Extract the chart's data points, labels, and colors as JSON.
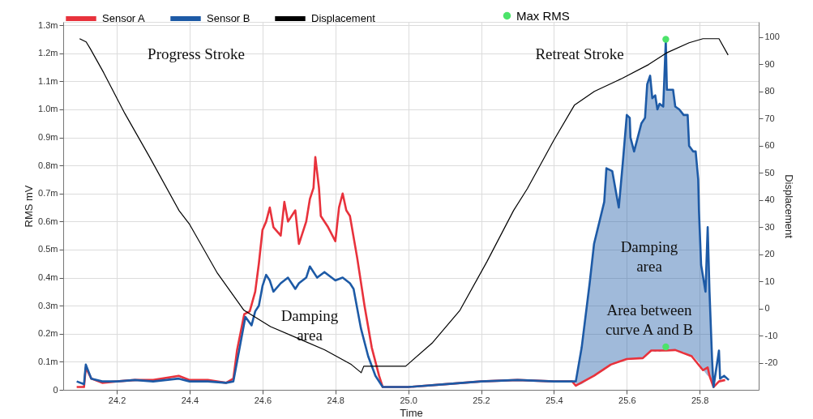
{
  "chart_data": {
    "type": "line",
    "xlabel": "Time",
    "ylabel": "RMS mV",
    "y2label": "Displacement",
    "xlim": [
      24.053,
      25.962
    ],
    "xticks": [
      24.2,
      24.4,
      24.6,
      24.8,
      {
        "value": 25.0,
        "label": "25.0"
      },
      25.2,
      25.4,
      25.6,
      25.8
    ],
    "ylim": [
      0,
      1.312
    ],
    "yticks": [
      0,
      {
        "value": 0.1,
        "label": "0.1m"
      },
      {
        "value": 0.2,
        "label": "0.2m"
      },
      {
        "value": 0.3,
        "label": "0.3m"
      },
      {
        "value": 0.4,
        "label": "0.4m"
      },
      {
        "value": 0.5,
        "label": "0.5m"
      },
      {
        "value": 0.6,
        "label": "0.6m"
      },
      {
        "value": 0.7,
        "label": "0.7m"
      },
      {
        "value": 0.8,
        "label": "0.8m"
      },
      {
        "value": 0.9,
        "label": "0.9m"
      },
      {
        "value": 1.0,
        "label": "1.0m"
      },
      {
        "value": 1.1,
        "label": "1.1m"
      },
      {
        "value": 1.2,
        "label": "1.2m"
      },
      {
        "value": 1.3,
        "label": "1.3m"
      }
    ],
    "y2lim": [
      -29.9,
      105.6
    ],
    "y2ticks": [
      -20,
      -10,
      0,
      10,
      20,
      30,
      40,
      50,
      60,
      70,
      80,
      90,
      100
    ],
    "grid": true,
    "legend": "top",
    "annotations": [
      "Progress Stroke",
      "Retreat Stroke",
      "Damping\narea",
      "Damping\narea",
      "Area between\ncurve A and B"
    ],
    "series": [
      {
        "name": "Sensor A",
        "type": "line",
        "color": "#e8323c",
        "x": [
          24.09,
          24.11,
          24.115,
          24.13,
          24.16,
          24.2,
          24.25,
          24.3,
          24.37,
          24.4,
          24.45,
          24.5,
          24.52,
          24.53,
          24.55,
          24.565,
          24.58,
          24.59,
          24.6,
          24.61,
          24.62,
          24.63,
          24.65,
          24.66,
          24.67,
          24.69,
          24.7,
          24.72,
          24.73,
          24.74,
          24.745,
          24.755,
          24.76,
          24.78,
          24.8,
          24.81,
          24.82,
          24.83,
          24.84,
          24.86,
          24.88,
          24.9,
          24.92,
          24.93,
          25.0,
          25.1,
          25.2,
          25.3,
          25.4,
          25.45,
          25.46,
          25.51,
          25.556,
          25.6,
          25.644,
          25.667,
          25.709,
          25.733,
          25.778,
          25.809,
          25.822,
          25.827,
          25.838,
          25.853,
          25.87
        ],
        "values": [
          0.01,
          0.01,
          0.08,
          0.04,
          0.025,
          0.03,
          0.035,
          0.035,
          0.05,
          0.035,
          0.035,
          0.025,
          0.04,
          0.14,
          0.27,
          0.28,
          0.35,
          0.45,
          0.57,
          0.6,
          0.65,
          0.58,
          0.55,
          0.67,
          0.6,
          0.64,
          0.52,
          0.6,
          0.68,
          0.72,
          0.83,
          0.72,
          0.62,
          0.58,
          0.53,
          0.65,
          0.7,
          0.64,
          0.62,
          0.47,
          0.3,
          0.15,
          0.05,
          0.01,
          0.01,
          0.02,
          0.03,
          0.035,
          0.03,
          0.03,
          0.015,
          0.05,
          0.09,
          0.11,
          0.113,
          0.14,
          0.14,
          0.142,
          0.12,
          0.07,
          0.08,
          0.05,
          0.01,
          0.03,
          0.035
        ]
      },
      {
        "name": "Sensor B",
        "type": "line",
        "color": "#1d5aa6",
        "x": [
          24.09,
          24.11,
          24.115,
          24.13,
          24.16,
          24.2,
          24.25,
          24.3,
          24.37,
          24.4,
          24.45,
          24.5,
          24.52,
          24.53,
          24.553,
          24.57,
          24.58,
          24.59,
          24.6,
          24.61,
          24.62,
          24.63,
          24.65,
          24.67,
          24.69,
          24.7,
          24.72,
          24.73,
          24.75,
          24.77,
          24.8,
          24.82,
          24.84,
          24.85,
          24.87,
          24.89,
          24.91,
          24.93,
          25.0,
          25.1,
          25.2,
          25.3,
          25.4,
          25.45,
          25.46,
          25.476,
          25.498,
          25.51,
          25.538,
          25.544,
          25.56,
          25.571,
          25.578,
          25.589,
          25.6,
          25.608,
          25.61,
          25.62,
          25.63,
          25.64,
          25.65,
          25.656,
          25.664,
          25.67,
          25.678,
          25.684,
          25.69,
          25.7,
          25.707,
          25.71,
          25.727,
          25.733,
          25.744,
          25.756,
          25.767,
          25.771,
          25.782,
          25.789,
          25.796,
          25.798,
          25.804,
          25.816,
          25.822,
          25.827,
          25.834,
          25.838,
          25.853,
          25.856,
          25.867,
          25.88
        ],
        "values": [
          0.03,
          0.02,
          0.09,
          0.04,
          0.03,
          0.03,
          0.035,
          0.03,
          0.04,
          0.03,
          0.03,
          0.025,
          0.03,
          0.1,
          0.26,
          0.23,
          0.28,
          0.3,
          0.37,
          0.41,
          0.39,
          0.35,
          0.38,
          0.4,
          0.36,
          0.38,
          0.4,
          0.44,
          0.4,
          0.42,
          0.39,
          0.4,
          0.38,
          0.36,
          0.22,
          0.12,
          0.05,
          0.01,
          0.01,
          0.02,
          0.03,
          0.035,
          0.03,
          0.03,
          0.03,
          0.15,
          0.38,
          0.52,
          0.67,
          0.79,
          0.78,
          0.7,
          0.65,
          0.81,
          0.98,
          0.97,
          0.9,
          0.85,
          0.9,
          0.95,
          0.97,
          1.09,
          1.12,
          1.04,
          1.05,
          1.0,
          1.02,
          1.01,
          1.245,
          1.07,
          1.07,
          1.01,
          1.0,
          0.98,
          0.98,
          0.87,
          0.85,
          0.85,
          0.75,
          0.64,
          0.445,
          0.35,
          0.58,
          0.35,
          0.11,
          0.01,
          0.14,
          0.04,
          0.05,
          0.035
        ],
        "lower": [
          null,
          null,
          null,
          null,
          null,
          null,
          null,
          null,
          null,
          null,
          null,
          null,
          null,
          null,
          null,
          null,
          null,
          null,
          null,
          null,
          null,
          null,
          null,
          null,
          null,
          null,
          null,
          null,
          null,
          null,
          null,
          null,
          null,
          null,
          null,
          null,
          null,
          null,
          null,
          null,
          null,
          null,
          null,
          null,
          0.015,
          0.02,
          0.04,
          0.05,
          0.07,
          0.08,
          0.09,
          0.095,
          0.1,
          0.105,
          0.11,
          0.11,
          0.11,
          0.11,
          0.112,
          0.113,
          0.12,
          0.13,
          0.14,
          0.14,
          0.135,
          0.14,
          0.135,
          0.14,
          0.145,
          0.14,
          0.14,
          0.142,
          0.135,
          0.135,
          0.125,
          0.12,
          0.12,
          0.11,
          0.1,
          0.1,
          0.08,
          0.06,
          0.05,
          0.05,
          0.02,
          0.01,
          null,
          null,
          null,
          null
        ],
        "upper": [
          null,
          null,
          null,
          null,
          null,
          null,
          null,
          null,
          null,
          null,
          null,
          null,
          null,
          null,
          null,
          null,
          null,
          null,
          null,
          null,
          null,
          null,
          null,
          null,
          null,
          null,
          null,
          null,
          null,
          null,
          null,
          null,
          null,
          null,
          null,
          null,
          null,
          null,
          null,
          null,
          null,
          null,
          null,
          null,
          0.03,
          0.15,
          0.38,
          0.52,
          0.67,
          0.79,
          0.78,
          0.7,
          0.65,
          0.81,
          0.98,
          0.97,
          0.9,
          0.85,
          0.9,
          0.95,
          0.97,
          1.09,
          1.12,
          1.04,
          1.05,
          1.0,
          1.02,
          1.01,
          1.245,
          1.07,
          1.07,
          1.01,
          1.0,
          0.98,
          0.98,
          0.87,
          0.85,
          0.85,
          0.75,
          0.64,
          0.445,
          0.35,
          0.58,
          0.35,
          0.11,
          0.01,
          null,
          null,
          null,
          null
        ]
      },
      {
        "name": "Displacement",
        "type": "line",
        "axis": "y2",
        "color": "#000000",
        "x": [
          24.098,
          24.116,
          24.127,
          24.164,
          24.222,
          24.289,
          24.371,
          24.4,
          24.476,
          24.549,
          24.622,
          24.698,
          24.771,
          24.844,
          24.871,
          24.878,
          24.993,
          25.067,
          25.142,
          25.216,
          25.289,
          25.327,
          25.4,
          25.456,
          25.511,
          25.587,
          25.66,
          25.711,
          25.771,
          25.809,
          25.853,
          25.878
        ],
        "values": [
          99.4,
          98.2,
          95.8,
          86.9,
          71.9,
          56.1,
          36.1,
          31,
          13.1,
          -0.6,
          -6.6,
          -11,
          -15.2,
          -20.6,
          -23.6,
          -21.2,
          -21.2,
          -12.5,
          -0.6,
          17.3,
          36.1,
          44.2,
          62.1,
          74.9,
          80,
          84.8,
          89.9,
          94.3,
          97.9,
          99.4,
          99.4,
          93.4
        ]
      },
      {
        "name": "Max RMS",
        "type": "scatter",
        "marker": "circle",
        "color": "#4ce36a",
        "x": [
          25.707,
          25.707
        ],
        "values": [
          1.25,
          0.153
        ]
      }
    ]
  }
}
